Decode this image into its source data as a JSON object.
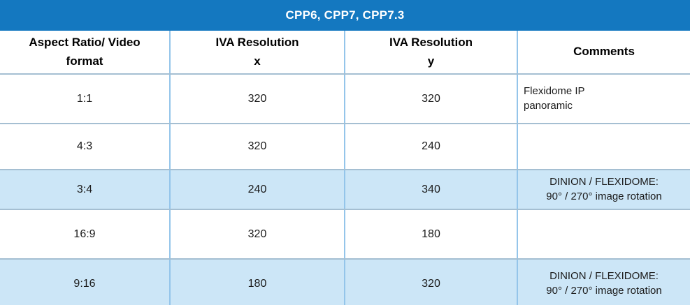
{
  "title": "CPP6, CPP7, CPP7.3",
  "columns": [
    {
      "label": "Aspect Ratio/ Video format",
      "lines": [
        "Aspect Ratio/ Video",
        "format"
      ]
    },
    {
      "label": "IVA Resolution x",
      "lines": [
        "IVA Resolution",
        "x"
      ]
    },
    {
      "label": "IVA Resolution y",
      "lines": [
        "IVA Resolution",
        "y"
      ]
    },
    {
      "label": "Comments",
      "lines": [
        "Comments"
      ]
    }
  ],
  "rows": [
    {
      "aspect_ratio": "1:1",
      "iva_x": "320",
      "iva_y": "320",
      "comment": [
        "Flexidome IP",
        "panoramic"
      ],
      "highlighted": false
    },
    {
      "aspect_ratio": "4:3",
      "iva_x": "320",
      "iva_y": "240",
      "comment": [],
      "highlighted": false
    },
    {
      "aspect_ratio": "3:4",
      "iva_x": "240",
      "iva_y": "340",
      "comment": [
        "DINION / FLEXIDOME:",
        "90° / 270° image rotation"
      ],
      "highlighted": true
    },
    {
      "aspect_ratio": "16:9",
      "iva_x": "320",
      "iva_y": "180",
      "comment": [],
      "highlighted": false
    },
    {
      "aspect_ratio": "9:16",
      "iva_x": "180",
      "iva_y": "320",
      "comment": [
        "DINION / FLEXIDOME:",
        "90° / 270° image rotation"
      ],
      "highlighted": true
    }
  ],
  "colors": {
    "header_blue": "#1478c0",
    "row_highlight": "#cce6f7",
    "horizontal_border": "#a5bfd2",
    "vertical_border": "#94c5ea"
  }
}
